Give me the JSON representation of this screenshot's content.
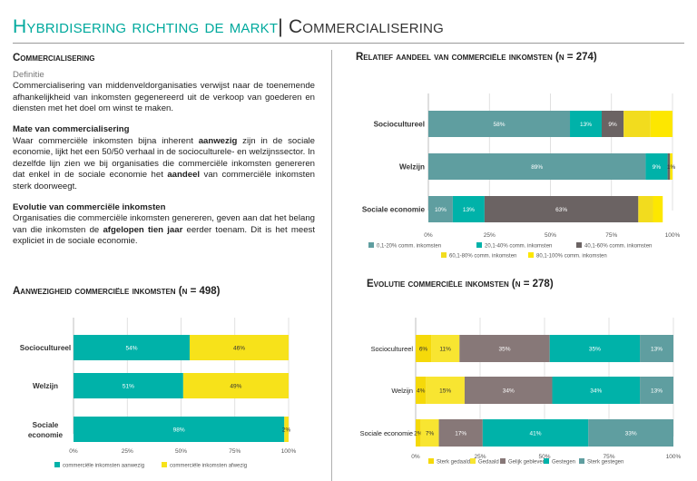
{
  "header": {
    "title_part1": "Hybridisering richting de markt",
    "separator": "|",
    "title_part2": "Commercialisering"
  },
  "text": {
    "section_title": "Commercialisering",
    "definitie_label": "Definitie",
    "definitie_body": "Commercialisering van middenveldorganisaties verwijst naar de toenemende afhankelijkheid van inkomsten gegenereerd uit de verkoop van goederen en diensten met het doel om winst te maken.",
    "mate_title": "Mate van commercialisering",
    "mate_body_1": "Waar commerciële inkomsten bijna inherent ",
    "mate_bold_1": "aanwezig",
    "mate_body_2": " zijn in de sociale economie, lijkt het een 50/50 verhaal in de socioculturele- en welzijnssector. In dezelfde lijn zien we bij organisaties die commerciële inkomsten genereren dat enkel in de sociale economie het ",
    "mate_bold_2": "aandeel",
    "mate_body_3": " van commerciële inkomsten sterk doorweegt.",
    "evolutie_title": "Evolutie van commerciële inkomsten",
    "evolutie_body_1": "Organisaties die commerciële inkomsten genereren, geven aan dat het belang van die inkomsten de ",
    "evolutie_bold": "afgelopen tien jaar",
    "evolutie_body_2": " eerder toenam. Dit is het meest expliciet in de sociale economie."
  },
  "chart_data": [
    {
      "id": "relatief",
      "type": "bar",
      "orientation": "horizontal",
      "stacked": true,
      "title": "Relatief aandeel van commerciële inkomsten (n = 274)",
      "categories": [
        "Sociocultureel",
        "Welzijn",
        "Sociale economie"
      ],
      "xlim": [
        0,
        100
      ],
      "xticks": [
        "0%",
        "25%",
        "50%",
        "75%",
        "100%"
      ],
      "legend_position": "bottom",
      "series": [
        {
          "name": "0,1-20% comm. inkomsten",
          "color": "#5f9ea0",
          "values": [
            58,
            89,
            10
          ],
          "labels": [
            "58%",
            "89%",
            "10%"
          ]
        },
        {
          "name": "20,1-40% comm. inkomsten",
          "color": "#00b2a9",
          "values": [
            13,
            9,
            13
          ],
          "labels": [
            "13%",
            "9%",
            "13%"
          ]
        },
        {
          "name": "40,1-60% comm. inkomsten",
          "color": "#6b6363",
          "values": [
            9,
            1,
            63
          ],
          "labels": [
            "9%",
            "",
            "63%"
          ]
        },
        {
          "name": "60,1-80% comm. inkomsten",
          "color": "#f2dc1e",
          "values": [
            11,
            0,
            6
          ],
          "labels": [
            "",
            "",
            ""
          ]
        },
        {
          "name": "80,1-100% comm. inkomsten",
          "color": "#fde700",
          "values": [
            9,
            1,
            4
          ],
          "labels": [
            "",
            "1%",
            ""
          ]
        }
      ]
    },
    {
      "id": "aanwezigheid",
      "type": "bar",
      "orientation": "horizontal",
      "stacked": true,
      "title": "Aanwezigheid commerciële inkomsten (n = 498)",
      "categories": [
        "Sociocultureel",
        "Welzijn",
        "Sociale economie"
      ],
      "xlim": [
        0,
        100
      ],
      "xticks": [
        "0%",
        "25%",
        "50%",
        "75%",
        "100%"
      ],
      "legend_position": "bottom",
      "series": [
        {
          "name": "commerciële inkomsten aanwezig",
          "color": "#00b2a9",
          "values": [
            54,
            51,
            98
          ],
          "labels": [
            "54%",
            "51%",
            "98%"
          ]
        },
        {
          "name": "commerciële inkomsten afwezig",
          "color": "#f7e21a",
          "values": [
            46,
            49,
            2
          ],
          "labels": [
            "46%",
            "49%",
            "2%"
          ]
        }
      ]
    },
    {
      "id": "evolutie",
      "type": "bar",
      "orientation": "horizontal",
      "stacked": true,
      "title": "Evolutie commerciële inkomsten (n = 278)",
      "categories": [
        "Sociocultureel",
        "Welzijn",
        "Sociale economie"
      ],
      "xlim": [
        0,
        100
      ],
      "xticks": [
        "0%",
        "25%",
        "50%",
        "75%",
        "100%"
      ],
      "legend_position": "bottom",
      "series": [
        {
          "name": "Sterk gedaald",
          "color": "#f5d90a",
          "values": [
            6,
            4,
            2
          ],
          "labels": [
            "6%",
            "4%",
            "2%"
          ]
        },
        {
          "name": "Gedaald",
          "color": "#f8e531",
          "values": [
            11,
            15,
            7
          ],
          "labels": [
            "11%",
            "15%",
            "7%"
          ]
        },
        {
          "name": "Gelijk gebleven",
          "color": "#877878",
          "values": [
            35,
            34,
            17
          ],
          "labels": [
            "35%",
            "34%",
            "17%"
          ]
        },
        {
          "name": "Gestegen",
          "color": "#00b2a9",
          "values": [
            35,
            34,
            41
          ],
          "labels": [
            "35%",
            "34%",
            "41%"
          ]
        },
        {
          "name": "Sterk gestegen",
          "color": "#5f9ea0",
          "values": [
            13,
            13,
            33
          ],
          "labels": [
            "13%",
            "13%",
            "33%"
          ]
        }
      ]
    }
  ]
}
